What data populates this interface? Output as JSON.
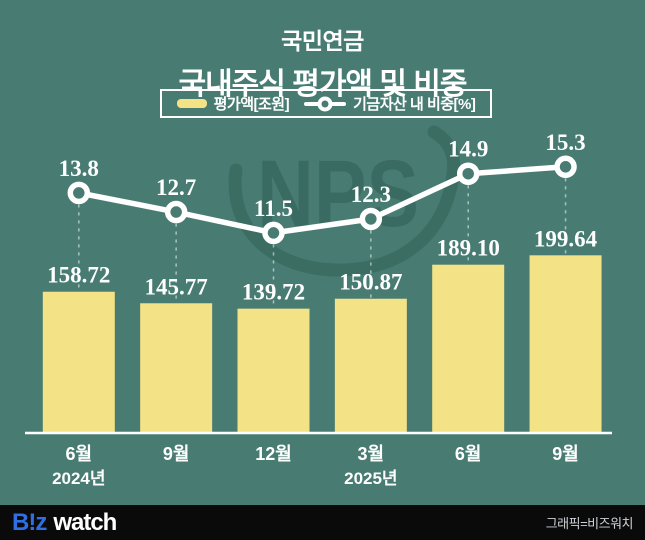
{
  "title": {
    "line1": "국민연금",
    "line2": "국내주식 평가액 및 비중"
  },
  "legend": {
    "bar_label": "평가액[조원]",
    "line_label": "기금자산 내 비중[%]"
  },
  "watermark": {
    "text": "NPS"
  },
  "footer": {
    "logo_biz": "B!z",
    "logo_watch": "watch",
    "credit": "그래픽=비즈워치"
  },
  "colors": {
    "background": "#487c73",
    "bar": "#f3e286",
    "line": "#ffffff",
    "watermark": "#3a6b62",
    "accent_blue": "#2e6fe4",
    "footer_bg": "#0a0a0a",
    "text": "#ffffff"
  },
  "chart_data": {
    "type": "combo",
    "title": "국민연금 국내주식 평가액 및 비중",
    "categories": [
      "6월",
      "9월",
      "12월",
      "3월",
      "6월",
      "9월"
    ],
    "year_labels": [
      "2024년",
      "",
      "",
      "2025년",
      "",
      ""
    ],
    "bar_series": {
      "name": "평가액[조원]",
      "values": [
        158.72,
        145.77,
        139.72,
        150.87,
        189.1,
        199.64
      ],
      "color": "#f3e286"
    },
    "line_series": {
      "name": "기금자산 내 비중[%]",
      "values": [
        13.8,
        12.7,
        11.5,
        12.3,
        14.9,
        15.3
      ],
      "color": "#ffffff"
    },
    "bar_axis_range": [
      0,
      220
    ],
    "line_axis_range": [
      10,
      17
    ],
    "grid": false,
    "legend_position": "top"
  }
}
